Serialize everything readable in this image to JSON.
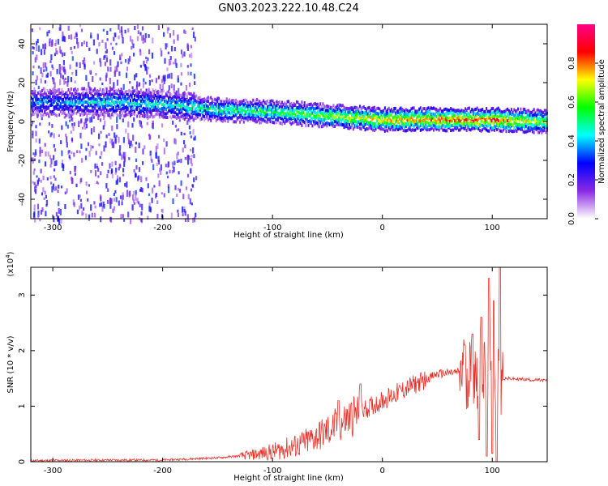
{
  "title": "GN03.2023.222.10.48.C24",
  "chart_data": [
    {
      "type": "heatmap",
      "xlabel": "Height of straight line (km)",
      "ylabel": "Frequency (Hz)",
      "xlim": [
        -320,
        150
      ],
      "ylim": [
        -50,
        50
      ],
      "x_ticks": [
        -300,
        -200,
        -100,
        0,
        100
      ],
      "y_ticks": [
        -40,
        -20,
        0,
        20,
        40
      ],
      "colorbar": {
        "label": "Normalized spectral amplitude",
        "range": [
          0,
          1
        ],
        "ticks": [
          "0.0",
          "0.2",
          "0.4",
          "0.6",
          "0.8"
        ],
        "colors": [
          "#ffffff",
          "#8a2be2",
          "#0000ff",
          "#00ffff",
          "#00ff00",
          "#ffff00",
          "#ff0000",
          "#ff0088"
        ]
      },
      "ridge": [
        {
          "x": -300,
          "freq": 10,
          "amp": 0.35
        },
        {
          "x": -250,
          "freq": 10,
          "amp": 0.45
        },
        {
          "x": -200,
          "freq": 9,
          "amp": 0.45
        },
        {
          "x": -150,
          "freq": 6,
          "amp": 0.5
        },
        {
          "x": -100,
          "freq": 5,
          "amp": 0.55
        },
        {
          "x": -50,
          "freq": 3,
          "amp": 0.6
        },
        {
          "x": 0,
          "freq": 1,
          "amp": 0.75
        },
        {
          "x": 50,
          "freq": 1,
          "amp": 0.8
        },
        {
          "x": 100,
          "freq": 1,
          "amp": 0.85
        },
        {
          "x": 150,
          "freq": 0,
          "amp": 0.6
        }
      ],
      "noise_region": {
        "x_range": [
          -320,
          -170
        ],
        "freq_range": [
          -50,
          50
        ],
        "amp": 0.25
      }
    },
    {
      "type": "line",
      "xlabel": "Height of straight line (km)",
      "ylabel": "SNR (10 * v/v)",
      "y_multiplier": "(x10^4)",
      "xlim": [
        -320,
        150
      ],
      "ylim": [
        0,
        3.5
      ],
      "x_ticks": [
        -300,
        -200,
        -100,
        0,
        100
      ],
      "y_ticks": [
        0,
        1,
        2,
        3
      ],
      "color": "#e8322a",
      "series": [
        {
          "x": [
            -320,
            -250,
            -200,
            -150,
            -120,
            -100,
            -75,
            -50,
            -25,
            0,
            25,
            50,
            75,
            85,
            95,
            100,
            105,
            110,
            130,
            150
          ],
          "y": [
            0.02,
            0.03,
            0.03,
            0.07,
            0.12,
            0.18,
            0.3,
            0.55,
            0.85,
            1.1,
            1.35,
            1.58,
            1.62,
            1.6,
            1.55,
            1.5,
            1.6,
            1.5,
            1.48,
            1.46
          ],
          "spikes": [
            {
              "x": -40,
              "y": 1.1
            },
            {
              "x": -20,
              "y": 1.4
            },
            {
              "x": 75,
              "y": 2.1
            },
            {
              "x": 82,
              "y": 2.3
            },
            {
              "x": 90,
              "y": 2.6
            },
            {
              "x": 97,
              "y": 3.3
            },
            {
              "x": 101,
              "y": 2.9
            },
            {
              "x": 107,
              "y": 3.5
            }
          ],
          "dips": [
            {
              "x": 88,
              "y": 0.4
            },
            {
              "x": 95,
              "y": 0.1
            },
            {
              "x": 100,
              "y": 0.15
            },
            {
              "x": 104,
              "y": 0.0
            }
          ]
        }
      ]
    }
  ]
}
